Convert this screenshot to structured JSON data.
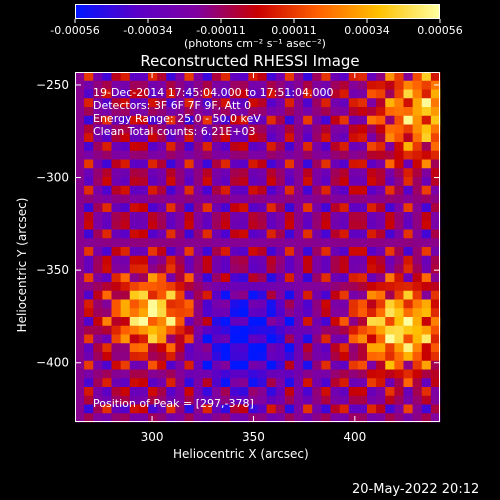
{
  "colorbar": {
    "tick_labels": [
      "-0.00056",
      "-0.00034",
      "-0.00011",
      "0.00011",
      "0.00034",
      "0.00056"
    ],
    "unit_label": "(photons cm⁻² s⁻¹ asec⁻²)",
    "colors": [
      "#0016ff",
      "#5a00c8",
      "#8000a0",
      "#c80000",
      "#ff6000",
      "#ffc000",
      "#ffffa0"
    ]
  },
  "chart_data": {
    "type": "heatmap",
    "title": "Reconstructed RHESSI Image",
    "xlabel": "Heliocentric X (arcsec)",
    "ylabel": "Heliocentric Y (arcsec)",
    "xlim": [
      262,
      442
    ],
    "ylim": [
      -432,
      -243
    ],
    "x_ticks": [
      300,
      350,
      400
    ],
    "y_ticks": [
      -250,
      -300,
      -350,
      -400
    ],
    "x_tick_labels": [
      "300",
      "350",
      "400"
    ],
    "y_tick_labels": [
      "−250",
      "−300",
      "−350",
      "−400"
    ],
    "value_range": [
      -0.00056,
      0.00056
    ],
    "annotations": [
      "19-Dec-2014 17:45:04.000 to 17:51:04.000",
      "Detectors: 3F 6F 7F 9F, Att 0",
      "Energy Range: 25.0 - 50.0 keV",
      "Clean     Total counts: 6.21E+03"
    ],
    "peak_label": "Position of Peak = [297,-378]",
    "peak_position": [
      297,
      -378
    ]
  },
  "footer": {
    "timestamp": "20-May-2022 20:12"
  }
}
